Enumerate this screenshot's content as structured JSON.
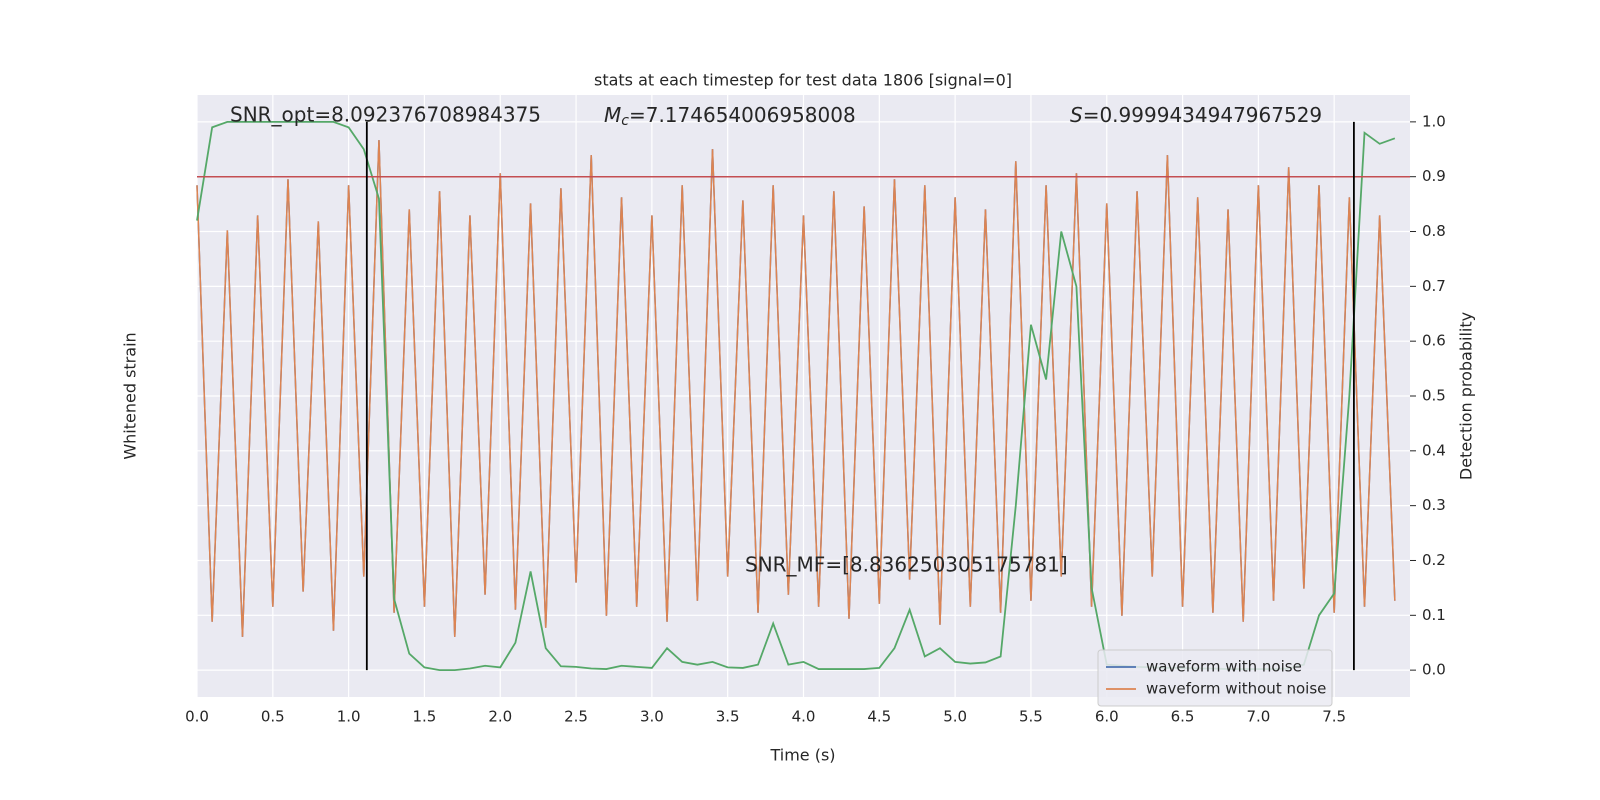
{
  "chart_data": {
    "type": "line",
    "title": "stats at each timestep for test data 1806 [signal=0]",
    "xlabel": "Time (s)",
    "ylabel": "Whitened strain",
    "y2label": "Detection probability",
    "xlim": [
      0,
      8
    ],
    "xticks": [
      {
        "value": 0,
        "label": "0.0"
      },
      0.5,
      {
        "value": 1,
        "label": "1.0"
      },
      1.5,
      {
        "value": 2,
        "label": "2.0"
      },
      2.5,
      {
        "value": 3,
        "label": "3.0"
      },
      3.5,
      {
        "value": 4,
        "label": "4.0"
      },
      4.5,
      {
        "value": 5,
        "label": "5.0"
      },
      5.5,
      {
        "value": 6,
        "label": "6.0"
      },
      6.5,
      {
        "value": 7,
        "label": "7.0"
      },
      7.5
    ],
    "ylim": [
      -1,
      1
    ],
    "y2lim": [
      -0.049,
      1.049
    ],
    "y2ticks": [
      {
        "value": 0,
        "label": "0.0"
      },
      0.1,
      0.2,
      0.3,
      0.4,
      0.5,
      0.6,
      0.7,
      0.8,
      0.9,
      {
        "value": 1,
        "label": "1.0"
      }
    ],
    "grid": true,
    "legend": "lower right",
    "x": [
      0,
      0.1,
      0.2,
      0.3,
      0.4,
      0.5,
      0.6,
      0.7,
      0.8,
      0.9,
      1,
      1.1,
      1.2,
      1.3,
      1.4,
      1.5,
      1.6,
      1.7,
      1.8,
      1.9,
      2,
      2.1,
      2.2,
      2.3,
      2.4,
      2.5,
      2.6,
      2.7,
      2.8,
      2.9,
      3,
      3.1,
      3.2,
      3.3,
      3.4,
      3.5,
      3.6,
      3.7,
      3.8,
      3.9,
      4,
      4.1,
      4.2,
      4.3,
      4.4,
      4.5,
      4.6,
      4.7,
      4.8,
      4.9,
      5,
      5.1,
      5.2,
      5.3,
      5.4,
      5.5,
      5.6,
      5.7,
      5.8,
      5.9,
      6,
      6.1,
      6.2,
      6.3,
      6.4,
      6.5,
      6.6,
      6.7,
      6.8,
      6.9,
      7,
      7.1,
      7.2,
      7.3,
      7.4,
      7.5,
      7.6,
      7.7,
      7.8,
      7.9
    ],
    "series": [
      {
        "name": "waveform with noise",
        "color": "#4c72b0",
        "values": [
          0.7,
          -0.75,
          0.55,
          -0.8,
          0.6,
          -0.7,
          0.72,
          -0.65,
          0.58,
          -0.78,
          0.7,
          -0.6,
          0.85,
          -0.72,
          0.62,
          -0.7,
          0.68,
          -0.8,
          0.6,
          -0.66,
          0.74,
          -0.71,
          0.64,
          -0.77,
          0.69,
          -0.62,
          0.8,
          -0.73,
          0.66,
          -0.7,
          0.6,
          -0.75,
          0.7,
          -0.68,
          0.82,
          -0.6,
          0.65,
          -0.72,
          0.7,
          -0.66,
          0.6,
          -0.7,
          0.68,
          -0.74,
          0.63,
          -0.69,
          0.72,
          -0.61,
          0.7,
          -0.76,
          0.66,
          -0.7,
          0.62,
          -0.72,
          0.78,
          -0.68,
          0.7,
          -0.6,
          0.74,
          -0.7,
          0.64,
          -0.73,
          0.68,
          -0.6,
          0.8,
          -0.7,
          0.66,
          -0.72,
          0.62,
          -0.75,
          0.7,
          -0.68,
          0.76,
          -0.64,
          0.7,
          -0.72,
          0.66,
          -0.7,
          0.6,
          -0.68
        ]
      },
      {
        "name": "waveform without noise",
        "color": "#dd8452",
        "values": [
          0.7,
          -0.75,
          0.55,
          -0.8,
          0.6,
          -0.7,
          0.72,
          -0.65,
          0.58,
          -0.78,
          0.7,
          -0.6,
          0.85,
          -0.72,
          0.62,
          -0.7,
          0.68,
          -0.8,
          0.6,
          -0.66,
          0.74,
          -0.71,
          0.64,
          -0.77,
          0.69,
          -0.62,
          0.8,
          -0.73,
          0.66,
          -0.7,
          0.6,
          -0.75,
          0.7,
          -0.68,
          0.82,
          -0.6,
          0.65,
          -0.72,
          0.7,
          -0.66,
          0.6,
          -0.7,
          0.68,
          -0.74,
          0.63,
          -0.69,
          0.72,
          -0.61,
          0.7,
          -0.76,
          0.66,
          -0.7,
          0.62,
          -0.72,
          0.78,
          -0.68,
          0.7,
          -0.6,
          0.74,
          -0.7,
          0.64,
          -0.73,
          0.68,
          -0.6,
          0.8,
          -0.7,
          0.66,
          -0.72,
          0.62,
          -0.75,
          0.7,
          -0.68,
          0.76,
          -0.64,
          0.7,
          -0.72,
          0.66,
          -0.7,
          0.6,
          -0.68
        ]
      },
      {
        "color": "#55a868",
        "axis": "y2",
        "values": [
          0.82,
          0.99,
          1,
          1,
          1,
          1,
          1,
          1,
          1,
          1,
          0.99,
          0.95,
          0.86,
          0.13,
          0.03,
          0.005,
          0,
          0,
          0.003,
          0.008,
          0.005,
          0.05,
          0.18,
          0.04,
          0.007,
          0.006,
          0.003,
          0.002,
          0.008,
          0.006,
          0.004,
          0.04,
          0.015,
          0.01,
          0.015,
          0.005,
          0.004,
          0.01,
          0.085,
          0.01,
          0.015,
          0.002,
          0.002,
          0.002,
          0.002,
          0.004,
          0.04,
          0.11,
          0.025,
          0.04,
          0.015,
          0.012,
          0.014,
          0.025,
          0.3,
          0.63,
          0.53,
          0.8,
          0.7,
          0.15,
          0.01,
          0.008,
          0.006,
          0.005,
          0.004,
          0.004,
          0.003,
          0.003,
          0.002,
          0.002,
          0.002,
          0.002,
          0.003,
          0.01,
          0.1,
          0.14,
          0.5,
          0.98,
          0.96,
          0.97
        ]
      }
    ],
    "hline": {
      "value": 0.9,
      "color": "#c44e52",
      "axis": "y2"
    },
    "vlines": {
      "values": [
        1.12,
        7.63
      ],
      "ymin": 0,
      "ymax": 1,
      "color": "#000000",
      "axis": "y2"
    },
    "annotations": {
      "snr_opt": "SNR_opt=8.092376708984375",
      "mc": [
        "M",
        "c",
        "=7.174654006958008"
      ],
      "s": [
        "S",
        "=0.9999434947967529"
      ],
      "snr_mf": "SNR_MF=[8.836250305175781]"
    }
  }
}
